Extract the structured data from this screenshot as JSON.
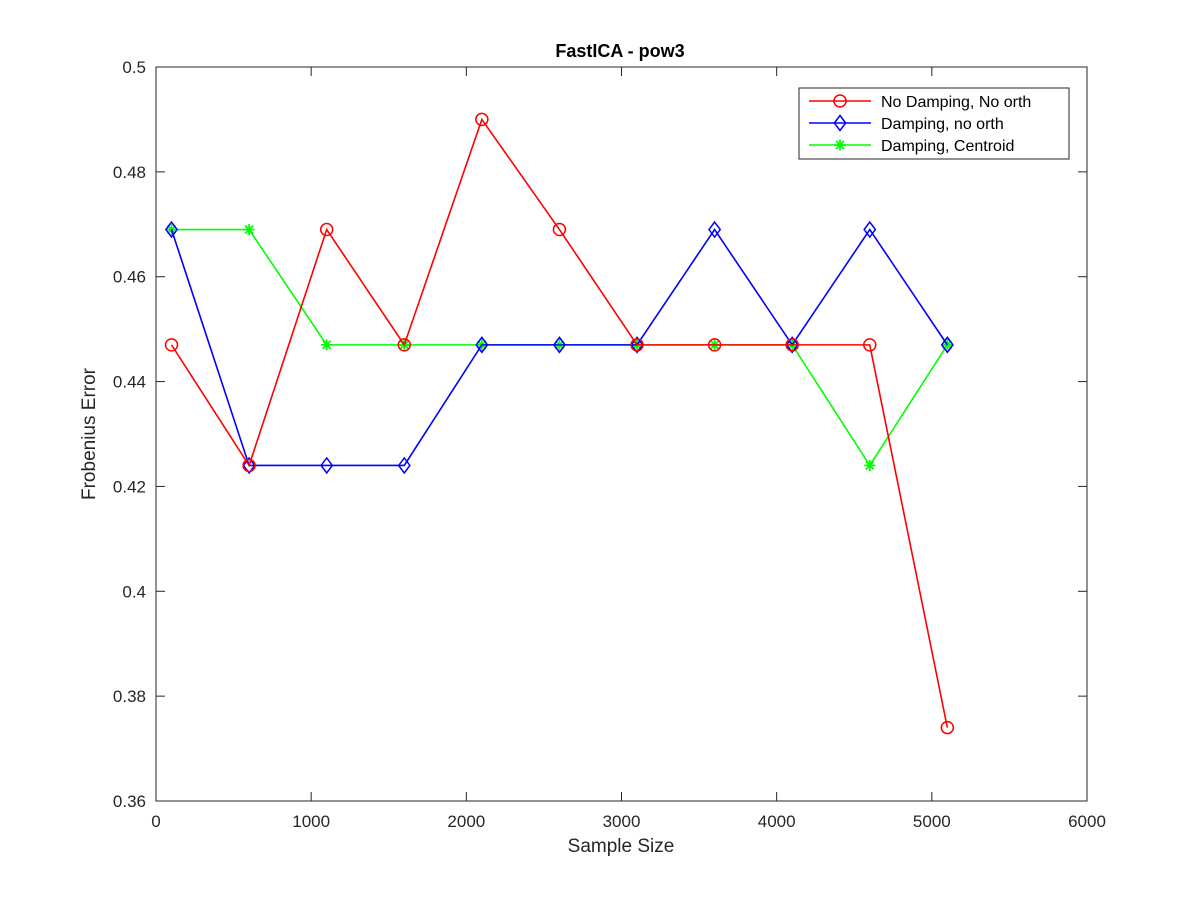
{
  "chart_data": {
    "type": "line",
    "title": "FastICA - pow3",
    "xlabel": "Sample Size",
    "ylabel": "Frobenius Error",
    "xlim": [
      0,
      6000
    ],
    "ylim": [
      0.36,
      0.5
    ],
    "xticks": [
      0,
      1000,
      2000,
      3000,
      4000,
      5000,
      6000
    ],
    "xtick_labels": [
      "0",
      "1000",
      "2000",
      "3000",
      "4000",
      "5000",
      "6000"
    ],
    "yticks": [
      0.36,
      0.38,
      0.4,
      0.42,
      0.44,
      0.46,
      0.48,
      0.5
    ],
    "ytick_labels": [
      "0.36",
      "0.38",
      "0.4",
      "0.42",
      "0.44",
      "0.46",
      "0.48",
      "0.5"
    ],
    "grid": false,
    "legend_position": "top-right",
    "x": [
      100,
      600,
      1100,
      1600,
      2100,
      2600,
      3100,
      3600,
      4100,
      4600,
      5100
    ],
    "series": [
      {
        "name": "No Damping, No orth",
        "color": "#ff0000",
        "marker": "circle",
        "values": [
          0.447,
          0.424,
          0.469,
          0.447,
          0.49,
          0.469,
          0.447,
          0.447,
          0.447,
          0.447,
          0.374
        ]
      },
      {
        "name": "Damping, no orth",
        "color": "#0000ff",
        "marker": "diamond",
        "values": [
          0.469,
          0.424,
          0.424,
          0.424,
          0.447,
          0.447,
          0.447,
          0.469,
          0.447,
          0.469,
          0.447
        ]
      },
      {
        "name": "Damping, Centroid",
        "color": "#00ff00",
        "marker": "asterisk",
        "values": [
          0.469,
          0.469,
          0.447,
          0.447,
          0.447,
          0.447,
          0.447,
          0.447,
          0.447,
          0.424,
          0.447
        ]
      }
    ]
  }
}
